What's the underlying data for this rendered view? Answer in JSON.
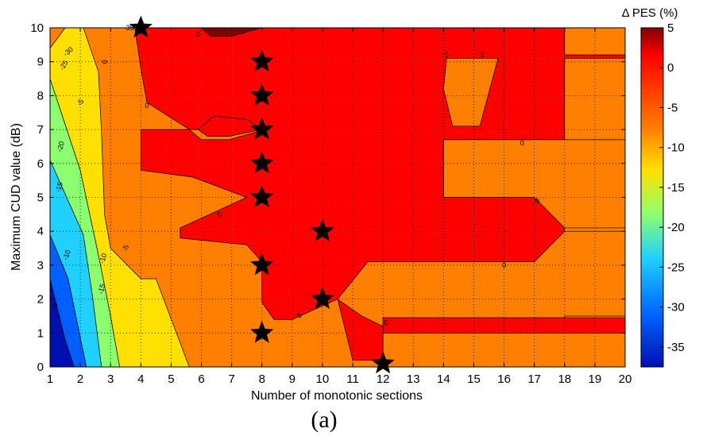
{
  "chart_data": {
    "type": "heatmap",
    "subtype": "filled-contour",
    "xlabel": "Number of monotonic sections",
    "ylabel": "Maximum CUD value (dB)",
    "caption": "(a)",
    "xlim": [
      1,
      20
    ],
    "ylim": [
      0,
      10
    ],
    "x_ticks": [
      "1",
      "2",
      "3",
      "4",
      "5",
      "6",
      "7",
      "8",
      "9",
      "10",
      "11",
      "12",
      "13",
      "14",
      "15",
      "16",
      "17",
      "18",
      "19",
      "20"
    ],
    "y_ticks": [
      "0",
      "1",
      "2",
      "3",
      "4",
      "5",
      "6",
      "7",
      "8",
      "9",
      "10"
    ],
    "grid": "dotted",
    "colorbar": {
      "title": "Δ PES (%)",
      "range": [
        -37.5,
        5
      ],
      "ticks": [
        "5",
        "0",
        "-5",
        "-10",
        "-15",
        "-20",
        "-25",
        "-30",
        "-35"
      ],
      "colors": [
        "#7f0000",
        "#ff0000",
        "#ff8000",
        "#ffe000",
        "#8cff70",
        "#20d0ff",
        "#0060ff",
        "#0010b0"
      ]
    },
    "contour_labels": [
      "-5",
      "-10",
      "-15",
      "-20",
      "-25",
      "-30",
      "-35",
      "0",
      "-5",
      "-10",
      "-15",
      "-5",
      "0",
      "0",
      "0",
      "0",
      "0",
      "0",
      "0",
      "0",
      "-5",
      "0"
    ],
    "markers": {
      "shape": "star",
      "points": [
        {
          "x": 4,
          "y": 10
        },
        {
          "x": 8,
          "y": 9
        },
        {
          "x": 8,
          "y": 8
        },
        {
          "x": 8,
          "y": 7
        },
        {
          "x": 8,
          "y": 6
        },
        {
          "x": 8,
          "y": 5
        },
        {
          "x": 8,
          "y": 3
        },
        {
          "x": 8,
          "y": 1
        },
        {
          "x": 10,
          "y": 4
        },
        {
          "x": 10,
          "y": 2
        },
        {
          "x": 12,
          "y": 0.1
        }
      ]
    },
    "regions": [
      {
        "level": "-35",
        "color": "#0010b0",
        "points": [
          [
            1,
            0
          ],
          [
            1,
            2.6
          ],
          [
            1.5,
            0.8
          ],
          [
            1.8,
            0
          ]
        ]
      },
      {
        "level": "-30",
        "color": "#0060ff",
        "points": [
          [
            1,
            2.6
          ],
          [
            1,
            3.9
          ],
          [
            1.6,
            2.6
          ],
          [
            2.2,
            0
          ],
          [
            1.8,
            0
          ],
          [
            1.5,
            0.8
          ]
        ]
      },
      {
        "level": "-25",
        "color": "#20d0ff",
        "points": [
          [
            1,
            3.9
          ],
          [
            1,
            6.1
          ],
          [
            2.1,
            3.9
          ],
          [
            2.4,
            2.1
          ],
          [
            2.7,
            0
          ],
          [
            2.2,
            0
          ],
          [
            1.6,
            2.6
          ]
        ]
      },
      {
        "level": "-20",
        "color": "#8cff70",
        "points": [
          [
            1,
            6.1
          ],
          [
            1,
            8.5
          ],
          [
            2.0,
            5.8
          ],
          [
            2.6,
            3.3
          ],
          [
            3.0,
            1.5
          ],
          [
            3.3,
            0
          ],
          [
            2.7,
            0
          ],
          [
            2.4,
            2.1
          ],
          [
            2.1,
            3.9
          ]
        ]
      },
      {
        "level": "-15",
        "color": "#ffe000",
        "points": [
          [
            1,
            8.5
          ],
          [
            1,
            9.4
          ],
          [
            1.5,
            10
          ],
          [
            2.1,
            10
          ],
          [
            2.6,
            8.7
          ],
          [
            2.7,
            6.9
          ],
          [
            2.8,
            4.5
          ],
          [
            3.0,
            3.5
          ],
          [
            4.0,
            2.6
          ],
          [
            4.5,
            2.6
          ],
          [
            5.6,
            0
          ],
          [
            3.3,
            0
          ],
          [
            3.0,
            1.5
          ],
          [
            2.6,
            3.3
          ],
          [
            2.0,
            5.8
          ]
        ]
      },
      {
        "level": "0",
        "color": "#ff0000",
        "points": [
          [
            3.8,
            10
          ],
          [
            20,
            10
          ],
          [
            20,
            9.1
          ],
          [
            18,
            9.1
          ],
          [
            18,
            1.4
          ],
          [
            16,
            1.2
          ],
          [
            12,
            1.2
          ],
          [
            12,
            0.4
          ],
          [
            12,
            0.2
          ],
          [
            11,
            0.2
          ],
          [
            10.5,
            2.0
          ],
          [
            9,
            1.4
          ],
          [
            8.4,
            1.4
          ],
          [
            8,
            1.9
          ],
          [
            8,
            3.1
          ],
          [
            7.5,
            3.6
          ],
          [
            5.3,
            3.8
          ],
          [
            5.3,
            4.1
          ],
          [
            7.5,
            5.0
          ],
          [
            5.7,
            5.6
          ],
          [
            4.0,
            5.8
          ],
          [
            4.0,
            7.0
          ],
          [
            5.6,
            7.0
          ],
          [
            4.2,
            7.8
          ],
          [
            4.0,
            8.8
          ],
          [
            3.8,
            10
          ]
        ]
      }
    ]
  }
}
